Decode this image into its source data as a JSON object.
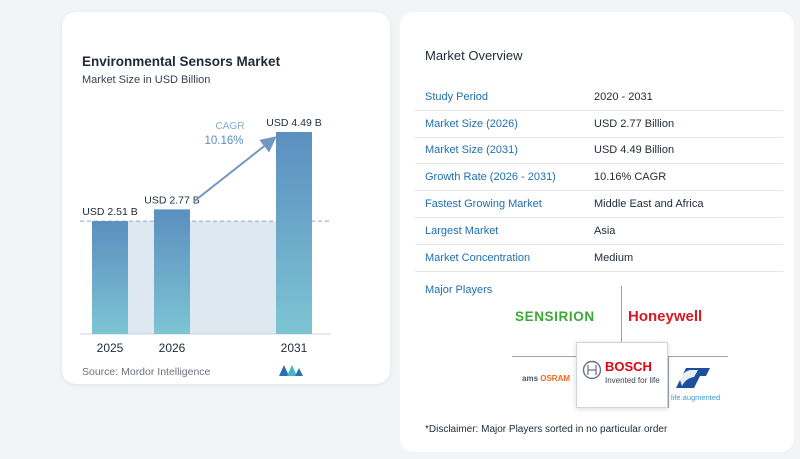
{
  "chart_data": {
    "type": "bar",
    "title": "Environmental Sensors Market",
    "subtitle": "Market Size in USD Billion",
    "categories": [
      "2025",
      "2026",
      "2031"
    ],
    "values": [
      2.51,
      2.77,
      4.49
    ],
    "data_labels": [
      "USD 2.51 B",
      "USD 2.77 B",
      "USD 4.49 B"
    ],
    "ylim": [
      0,
      4.49
    ],
    "grid": false,
    "cagr_label": "CAGR",
    "cagr_value": "10.16%",
    "colors": {
      "bar_top": "#5b8fbf",
      "bar_bottom": "#7dc4d4",
      "band": "#dde8f1",
      "arrow": "#6f97bf"
    }
  },
  "source": "Source:  Mordor Intelligence",
  "overview": {
    "title": "Market Overview",
    "rows": [
      {
        "label": "Study Period",
        "value": "2020 - 2031"
      },
      {
        "label": "Market Size (2026)",
        "value": "USD 2.77 Billion"
      },
      {
        "label": "Market Size (2031)",
        "value": "USD 4.49 Billion"
      },
      {
        "label": "Growth Rate (2026 - 2031)",
        "value": "10.16% CAGR"
      },
      {
        "label": "Fastest Growing Market",
        "value": "Middle East and Africa"
      },
      {
        "label": "Largest Market",
        "value": "Asia"
      },
      {
        "label": "Market Concentration",
        "value": "Medium"
      }
    ]
  },
  "players": {
    "title": "Major Players",
    "sensirion": "SENSIRION",
    "honeywell": "Honeywell",
    "bosch": "BOSCH",
    "bosch_tagline": "Invented for life",
    "ams": "ams",
    "osram": "OSRAM",
    "st_tagline": "life.augmented"
  },
  "disclaimer": "*Disclaimer: Major Players sorted in no particular order"
}
